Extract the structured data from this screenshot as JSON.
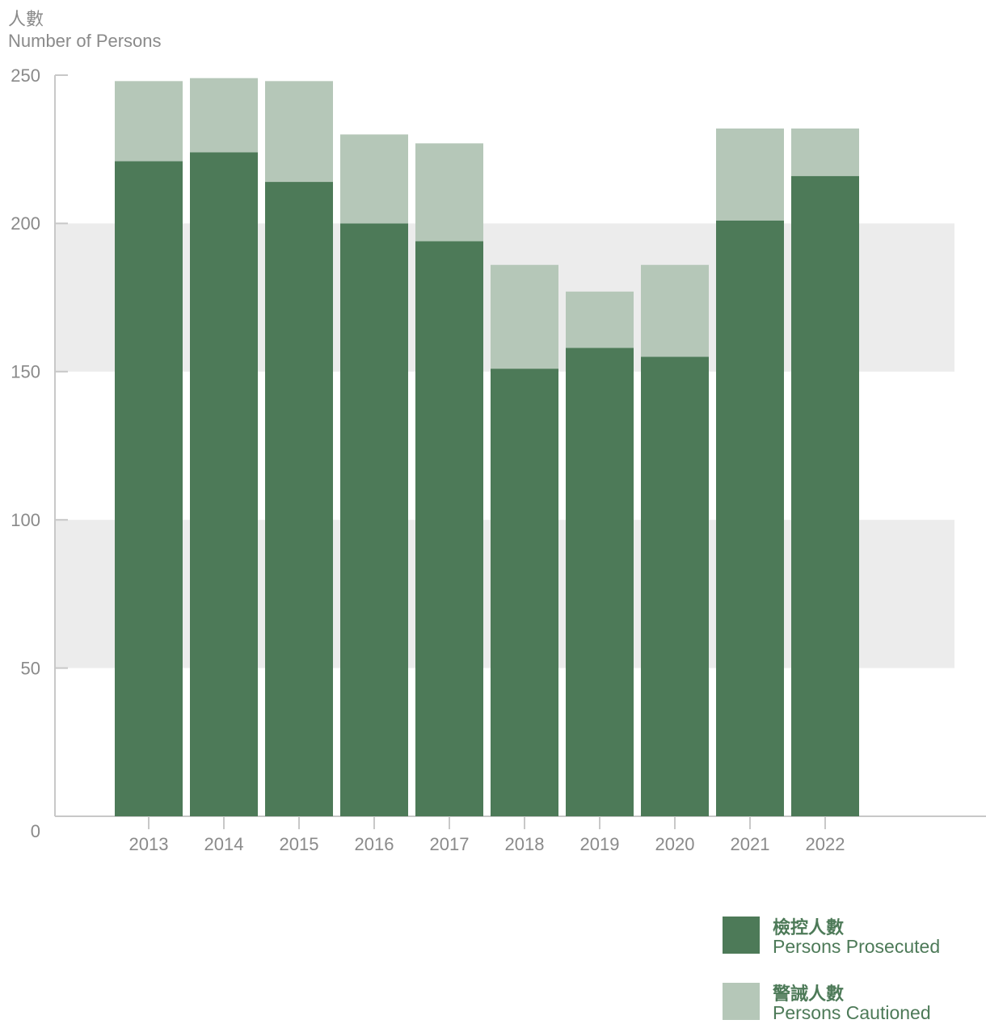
{
  "chart_data": {
    "type": "bar",
    "stacked": true,
    "ylabel_zh": "人數",
    "ylabel_en": "Number of Persons",
    "categories": [
      "2013",
      "2014",
      "2015",
      "2016",
      "2017",
      "2018",
      "2019",
      "2020",
      "2021",
      "2022"
    ],
    "series": [
      {
        "name_zh": "檢控人數",
        "name_en": "Persons Prosecuted",
        "color": "#4d7a58",
        "values": [
          221,
          224,
          214,
          200,
          194,
          151,
          158,
          155,
          201,
          216
        ]
      },
      {
        "name_zh": "警誡人數",
        "name_en": "Persons Cautioned",
        "color": "#b5c7b8",
        "values": [
          27,
          25,
          34,
          30,
          33,
          35,
          19,
          31,
          31,
          16
        ]
      }
    ],
    "ylim": [
      0,
      250
    ],
    "yticks": [
      0,
      50,
      100,
      150,
      200,
      250
    ],
    "grid": "alternating bands",
    "legend_position": "bottom-right"
  }
}
